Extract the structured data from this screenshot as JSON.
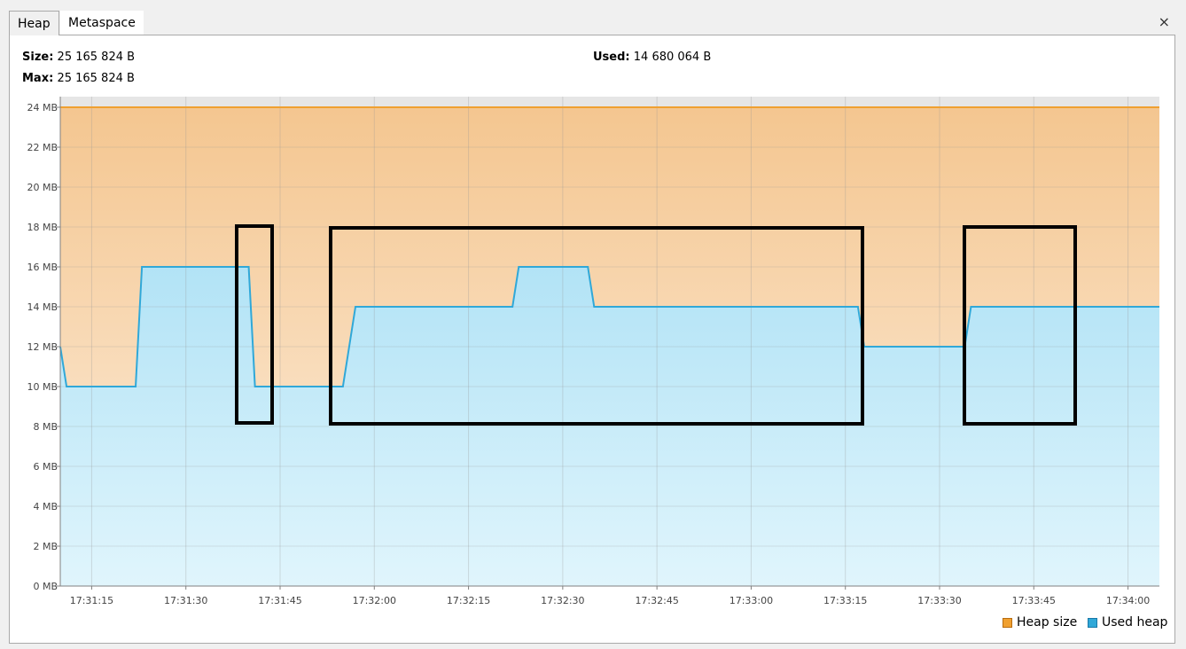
{
  "tabs": [
    {
      "label": "Heap",
      "active": true
    },
    {
      "label": "Metaspace",
      "active": false
    }
  ],
  "close_glyph": "×",
  "info": {
    "size_label": "Size:",
    "size_value": "25 165 824 B",
    "used_label": "Used:",
    "used_value": "14 680 064 B",
    "max_label": "Max:",
    "max_value": "25 165 824 B"
  },
  "legend": [
    {
      "label": "Heap size",
      "color": "#f0a030"
    },
    {
      "label": "Used heap",
      "color": "#30a8d8"
    }
  ],
  "chart_data": {
    "type": "area",
    "y_unit": "MB",
    "ylim": [
      0,
      24
    ],
    "y_ticks": [
      "0 MB",
      "2 MB",
      "4 MB",
      "6 MB",
      "8 MB",
      "10 MB",
      "12 MB",
      "14 MB",
      "16 MB",
      "18 MB",
      "20 MB",
      "22 MB",
      "24 MB"
    ],
    "x_ticks": [
      "17:31:15",
      "17:31:30",
      "17:31:45",
      "17:32:00",
      "17:32:15",
      "17:32:30",
      "17:32:45",
      "17:33:00",
      "17:33:15",
      "17:33:30",
      "17:33:45",
      "17:34:00"
    ],
    "xlim": [
      "17:31:10",
      "17:34:05"
    ],
    "grid": true,
    "legend_position": "bottom-right",
    "series": [
      {
        "name": "Heap size",
        "color": "#f0a030",
        "points": [
          [
            "17:31:10",
            24
          ],
          [
            "17:34:05",
            24
          ]
        ]
      },
      {
        "name": "Used heap",
        "color": "#30a8d8",
        "points": [
          [
            "17:31:10",
            12
          ],
          [
            "17:31:11",
            10
          ],
          [
            "17:31:22",
            10
          ],
          [
            "17:31:23",
            16
          ],
          [
            "17:31:40",
            16
          ],
          [
            "17:31:41",
            10
          ],
          [
            "17:31:55",
            10
          ],
          [
            "17:31:57",
            14
          ],
          [
            "17:32:22",
            14
          ],
          [
            "17:32:23",
            16
          ],
          [
            "17:32:34",
            16
          ],
          [
            "17:32:35",
            14
          ],
          [
            "17:33:17",
            14
          ],
          [
            "17:33:18",
            12
          ],
          [
            "17:33:34",
            12
          ],
          [
            "17:33:35",
            14
          ],
          [
            "17:34:05",
            14
          ]
        ]
      }
    ]
  }
}
